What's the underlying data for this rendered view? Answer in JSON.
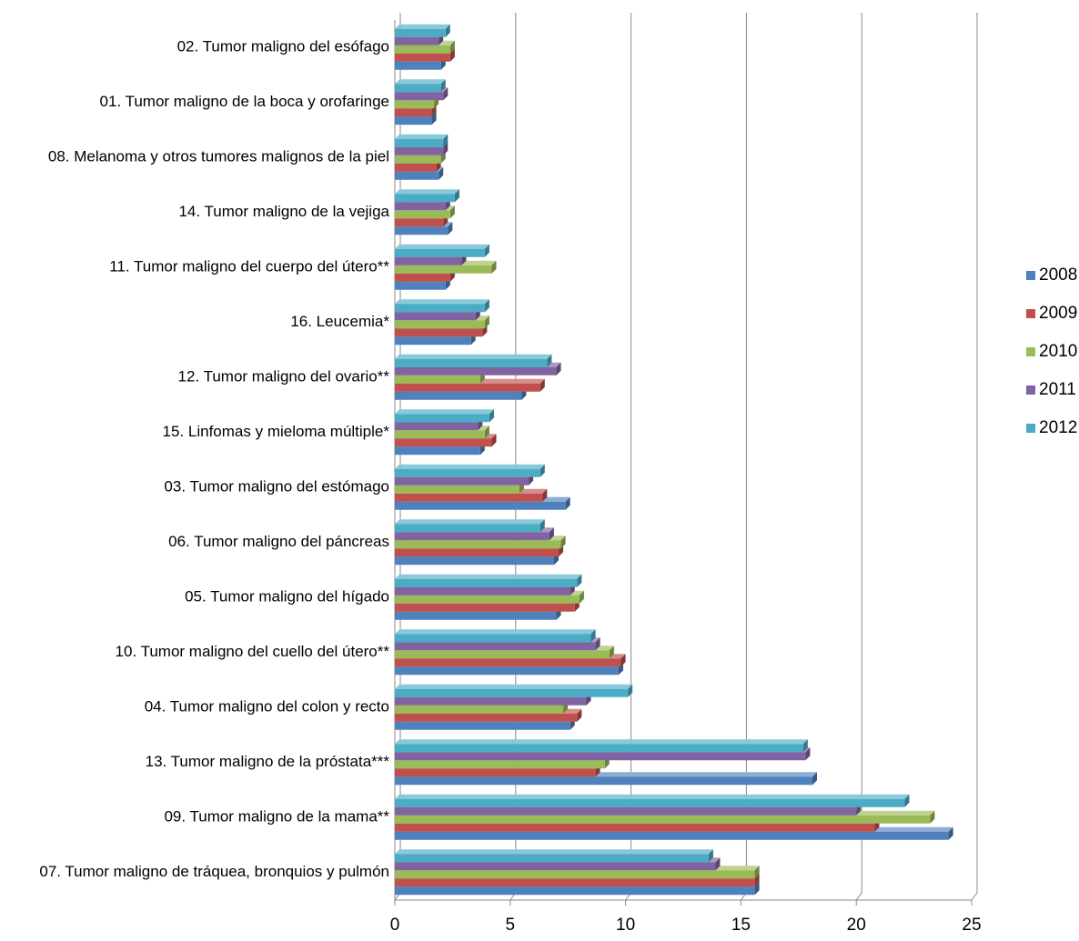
{
  "chart_data": {
    "type": "bar",
    "orientation": "horizontal",
    "categories": [
      "02. Tumor maligno del esófago",
      "01. Tumor maligno de la boca y orofaringe",
      "08. Melanoma y otros tumores malignos de la piel",
      "14. Tumor maligno de la vejiga",
      "11. Tumor maligno del cuerpo del útero**",
      "16. Leucemia*",
      "12. Tumor maligno del ovario**",
      "15. Linfomas y mieloma múltiple*",
      "03. Tumor maligno del estómago",
      "06. Tumor maligno del páncreas",
      "05. Tumor maligno del hígado",
      "10. Tumor maligno del cuello del útero**",
      "04. Tumor maligno del colon y recto",
      "13. Tumor maligno de la próstata***",
      "09. Tumor maligno de la mama**",
      "07. Tumor maligno de tráquea, bronquios y pulmón"
    ],
    "series": [
      {
        "name": "2008",
        "color": "#4f81bd",
        "values": [
          2.0,
          1.6,
          1.9,
          2.3,
          2.2,
          3.3,
          5.5,
          3.7,
          7.4,
          6.9,
          7.0,
          9.7,
          7.6,
          18.1,
          24.0,
          15.6
        ]
      },
      {
        "name": "2009",
        "color": "#c0504d",
        "values": [
          2.4,
          1.6,
          1.8,
          2.1,
          2.4,
          3.8,
          6.3,
          4.2,
          6.4,
          7.1,
          7.8,
          9.8,
          7.9,
          8.7,
          20.8,
          15.6
        ]
      },
      {
        "name": "2010",
        "color": "#9bbb59",
        "values": [
          2.4,
          1.7,
          2.0,
          2.4,
          4.2,
          3.9,
          3.7,
          3.9,
          5.4,
          7.2,
          8.0,
          9.3,
          7.3,
          9.1,
          23.2,
          15.6
        ]
      },
      {
        "name": "2011",
        "color": "#8064a2",
        "values": [
          1.9,
          2.1,
          2.1,
          2.2,
          2.9,
          3.5,
          7.0,
          3.6,
          5.8,
          6.7,
          7.6,
          8.7,
          8.3,
          17.8,
          20.0,
          13.9
        ]
      },
      {
        "name": "2012",
        "color": "#4bacc6",
        "values": [
          2.2,
          2.0,
          2.1,
          2.6,
          3.9,
          3.9,
          6.6,
          4.1,
          6.3,
          6.3,
          7.9,
          8.5,
          10.1,
          17.7,
          22.1,
          13.6
        ]
      }
    ],
    "xlim": [
      0,
      25
    ],
    "xticks": [
      0,
      5,
      10,
      15,
      20,
      25
    ],
    "grid": true,
    "legend": "right"
  }
}
